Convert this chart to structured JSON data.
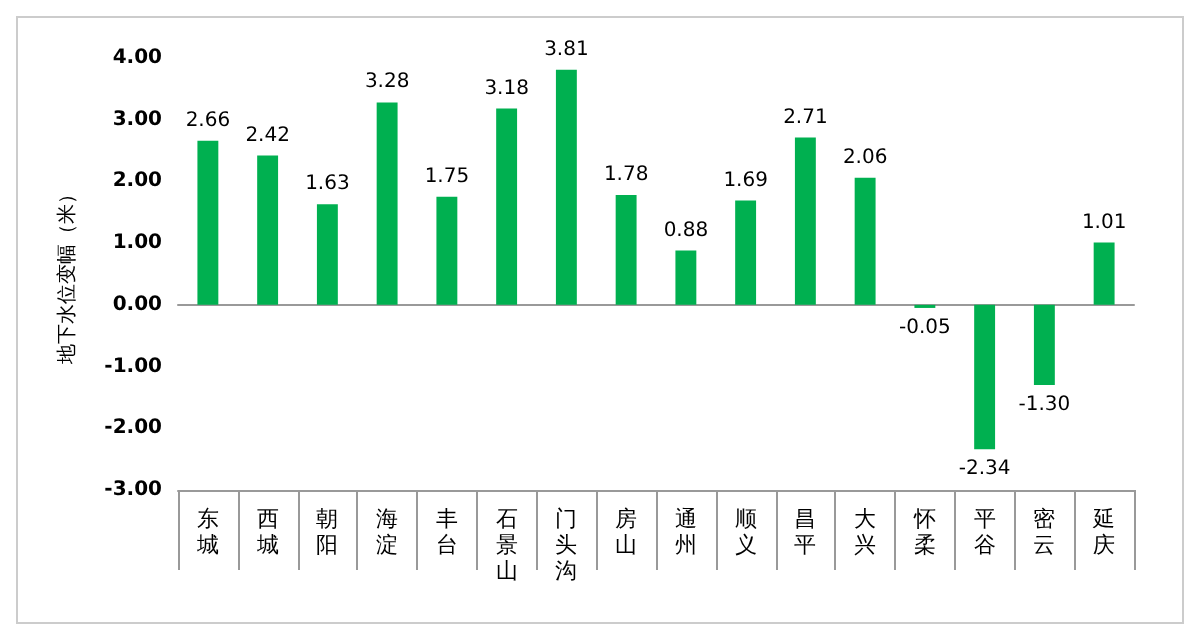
{
  "chart_data": {
    "type": "bar",
    "ylabel": "地下水位变幅（米）",
    "categories": [
      "东城",
      "西城",
      "朝阳",
      "海淀",
      "丰台",
      "石景山",
      "门头沟",
      "房山",
      "通州",
      "顺义",
      "昌平",
      "大兴",
      "怀柔",
      "平谷",
      "密云",
      "延庆"
    ],
    "values": [
      2.66,
      2.42,
      1.63,
      3.28,
      1.75,
      3.18,
      3.81,
      1.78,
      0.88,
      1.69,
      2.71,
      2.06,
      -0.05,
      -2.34,
      -1.3,
      1.01
    ],
    "color": "#00b050",
    "ylim": [
      -3,
      4
    ],
    "yticks": [
      {
        "value": -3,
        "label": "-3.00"
      },
      {
        "value": -2,
        "label": "-2.00"
      },
      {
        "value": -1,
        "label": "-1.00"
      },
      {
        "value": 0,
        "label": "0.00"
      },
      {
        "value": 1,
        "label": "1.00"
      },
      {
        "value": 2,
        "label": "2.00"
      },
      {
        "value": 3,
        "label": "3.00"
      },
      {
        "value": 4,
        "label": "4.00"
      }
    ],
    "value_labels": [
      "2.66",
      "2.42",
      "1.63",
      "3.28",
      "1.75",
      "3.18",
      "3.81",
      "1.78",
      "0.88",
      "1.69",
      "2.71",
      "2.06",
      "-0.05",
      "-2.34",
      "-1.30",
      "1.01"
    ],
    "line_style": "solid"
  }
}
